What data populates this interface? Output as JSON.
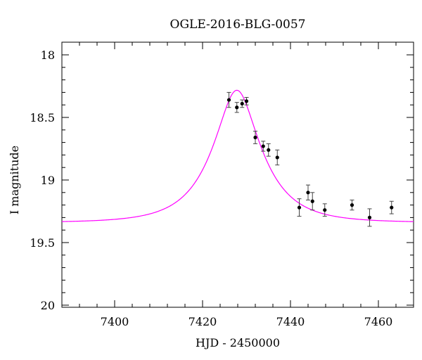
{
  "chart_data": {
    "type": "scatter",
    "title": "OGLE-2016-BLG-0057",
    "xlabel": "HJD - 2450000",
    "ylabel": "I magnitude",
    "xlim": [
      7388,
      7468
    ],
    "ylim": [
      18,
      20
    ],
    "y_inverted": true,
    "x_ticks": [
      7400,
      7420,
      7440,
      7460
    ],
    "x_tick_labels": [
      "7400",
      "7420",
      "7440",
      "7460"
    ],
    "y_ticks": [
      18,
      18.5,
      19,
      19.5,
      20
    ],
    "y_tick_labels": [
      "18",
      "18.5",
      "19",
      "19.5",
      "20"
    ],
    "grid": false,
    "legend": "none",
    "points": [
      {
        "x": 7426.0,
        "y": 18.36,
        "err": 0.06
      },
      {
        "x": 7427.8,
        "y": 18.42,
        "err": 0.04
      },
      {
        "x": 7429.0,
        "y": 18.39,
        "err": 0.03
      },
      {
        "x": 7430.0,
        "y": 18.37,
        "err": 0.03
      },
      {
        "x": 7432.0,
        "y": 18.66,
        "err": 0.05
      },
      {
        "x": 7433.8,
        "y": 18.73,
        "err": 0.04
      },
      {
        "x": 7435.0,
        "y": 18.76,
        "err": 0.05
      },
      {
        "x": 7437.0,
        "y": 18.82,
        "err": 0.06
      },
      {
        "x": 7442.0,
        "y": 19.22,
        "err": 0.07
      },
      {
        "x": 7444.0,
        "y": 19.1,
        "err": 0.06
      },
      {
        "x": 7445.0,
        "y": 19.17,
        "err": 0.07
      },
      {
        "x": 7447.8,
        "y": 19.24,
        "err": 0.05
      },
      {
        "x": 7454.0,
        "y": 19.2,
        "err": 0.04
      },
      {
        "x": 7458.0,
        "y": 19.3,
        "err": 0.07
      },
      {
        "x": 7463.0,
        "y": 19.22,
        "err": 0.05
      }
    ],
    "model": {
      "t0": 7427.8,
      "u0": 0.4,
      "tE": 10.4,
      "baseline_mag": 19.34,
      "color": "#ff00ff"
    },
    "point_color": "#000000",
    "errorbar_color": "#444444"
  }
}
